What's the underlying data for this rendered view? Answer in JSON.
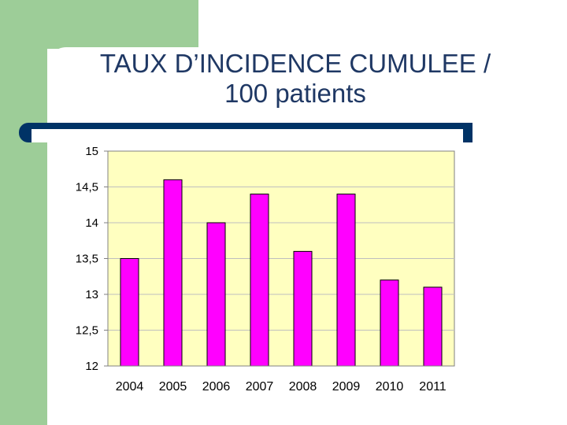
{
  "slide": {
    "title_line1": "TAUX D’INCIDENCE CUMULEE /",
    "title_line2": "100 patients"
  },
  "colors": {
    "background_band": "#9dcd98",
    "title": "#1f3864",
    "rule": "#003366",
    "plot_area": "#ffffc0",
    "bars": "#ff00ff"
  },
  "chart_data": {
    "type": "bar",
    "title": "",
    "xlabel": "",
    "ylabel": "",
    "categories": [
      "2004",
      "2005",
      "2006",
      "2007",
      "2008",
      "2009",
      "2010",
      "2011"
    ],
    "values": [
      13.5,
      14.6,
      14.0,
      14.4,
      13.6,
      14.4,
      13.2,
      13.1
    ],
    "ylim": [
      12,
      15
    ],
    "yticks": [
      12,
      12.5,
      13,
      13.5,
      14,
      14.5,
      15
    ],
    "ytick_labels": [
      "12",
      "12,5",
      "13",
      "13,5",
      "14",
      "14,5",
      "15"
    ],
    "grid": true,
    "legend": "none"
  }
}
